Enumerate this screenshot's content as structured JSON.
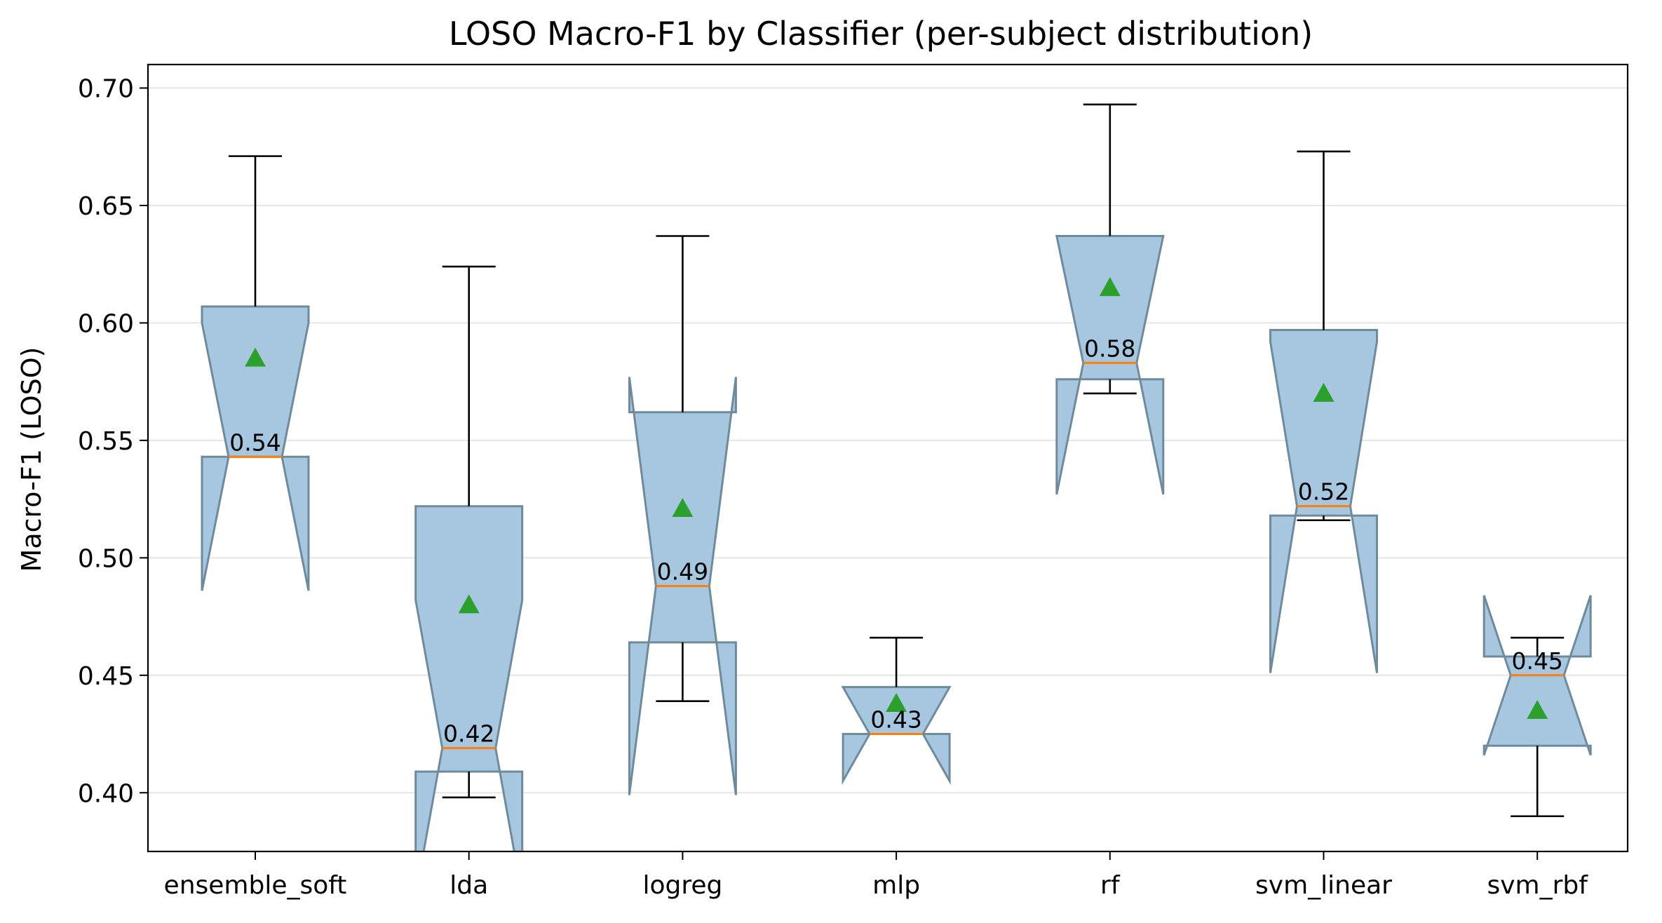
{
  "chart_data": {
    "type": "boxplot",
    "title": "LOSO Macro-F1 by Classifier (per-subject distribution)",
    "xlabel": "",
    "ylabel": "Macro-F1 (LOSO)",
    "ylim": [
      0.375,
      0.71
    ],
    "yticks": [
      "0.40",
      "0.45",
      "0.50",
      "0.55",
      "0.60",
      "0.65",
      "0.70"
    ],
    "ytick_values": [
      0.4,
      0.45,
      0.5,
      0.55,
      0.6,
      0.65,
      0.7
    ],
    "grid": "horizontal",
    "notched": true,
    "show_means": true,
    "colors": {
      "box_fill": "#a7c7e0",
      "box_edge": "#6f8a9b",
      "median": "#ff7f0e",
      "mean_marker": "#2ca02c",
      "whisker": "#000000",
      "grid": "#e6e6e6"
    },
    "categories": [
      "ensemble_soft",
      "lda",
      "logreg",
      "mlp",
      "rf",
      "svm_linear",
      "svm_rbf"
    ],
    "boxes": [
      {
        "name": "ensemble_soft",
        "q1": 0.543,
        "median": 0.543,
        "q3": 0.607,
        "whisker_low": 0.543,
        "whisker_high": 0.671,
        "notch_low": 0.486,
        "notch_high": 0.6,
        "mean": 0.585,
        "median_label": "0.54"
      },
      {
        "name": "lda",
        "q1": 0.409,
        "median": 0.419,
        "q3": 0.522,
        "whisker_low": 0.398,
        "whisker_high": 0.624,
        "notch_low": 0.356,
        "notch_high": 0.482,
        "mean": 0.48,
        "median_label": "0.42"
      },
      {
        "name": "logreg",
        "q1": 0.464,
        "median": 0.488,
        "q3": 0.562,
        "whisker_low": 0.439,
        "whisker_high": 0.637,
        "notch_low": 0.399,
        "notch_high": 0.577,
        "mean": 0.521,
        "median_label": "0.49"
      },
      {
        "name": "mlp",
        "q1": 0.425,
        "median": 0.425,
        "q3": 0.445,
        "whisker_low": 0.425,
        "whisker_high": 0.466,
        "notch_low": 0.405,
        "notch_high": 0.445,
        "mean": 0.438,
        "median_label": "0.43"
      },
      {
        "name": "rf",
        "q1": 0.576,
        "median": 0.583,
        "q3": 0.637,
        "whisker_low": 0.57,
        "whisker_high": 0.693,
        "notch_low": 0.527,
        "notch_high": 0.637,
        "mean": 0.615,
        "median_label": "0.58"
      },
      {
        "name": "svm_linear",
        "q1": 0.518,
        "median": 0.522,
        "q3": 0.597,
        "whisker_low": 0.516,
        "whisker_high": 0.673,
        "notch_low": 0.451,
        "notch_high": 0.592,
        "mean": 0.57,
        "median_label": "0.52"
      },
      {
        "name": "svm_rbf",
        "q1": 0.42,
        "median": 0.45,
        "q3": 0.458,
        "whisker_low": 0.39,
        "whisker_high": 0.466,
        "notch_low": 0.416,
        "notch_high": 0.484,
        "mean": 0.435,
        "median_label": "0.45"
      }
    ]
  }
}
